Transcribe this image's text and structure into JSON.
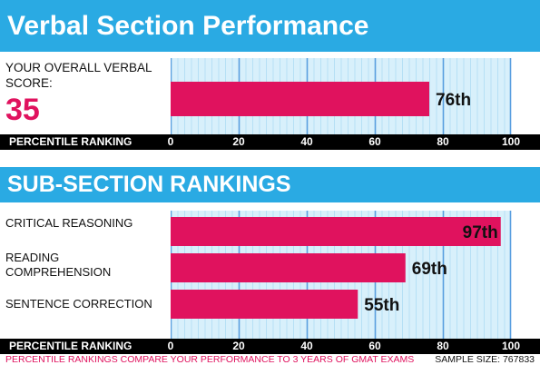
{
  "header": {
    "title": "Verbal Section Performance"
  },
  "overall": {
    "label": "YOUR OVERALL VERBAL SCORE:",
    "score": "35"
  },
  "subsection": {
    "title": "SUB-SECTION RANKINGS"
  },
  "footer": {
    "note": "PERCENTILE RANKINGS COMPARE YOUR PERFORMANCE TO 3 YEARS OF GMAT EXAMS",
    "sample": "SAMPLE SIZE: 767833"
  },
  "colors": {
    "banner": "#2aaae3",
    "bar": "#e0125e",
    "plot_bg": "#d8f0fb",
    "grid": "#5a9fe0"
  },
  "chart_data": [
    {
      "type": "bar",
      "orientation": "horizontal",
      "categories": [
        "YOUR OVERALL VERBAL SCORE"
      ],
      "values": [
        76
      ],
      "data_labels": [
        "76th"
      ],
      "xlabel": "PERCENTILE RANKING",
      "xlim": [
        0,
        100
      ],
      "xticks": [
        0,
        20,
        40,
        60,
        80,
        100
      ],
      "grid": true
    },
    {
      "type": "bar",
      "orientation": "horizontal",
      "categories": [
        "CRITICAL REASONING",
        "READING COMPREHENSION",
        "SENTENCE CORRECTION"
      ],
      "values": [
        97,
        69,
        55
      ],
      "data_labels": [
        "97th",
        "69th",
        "55th"
      ],
      "xlabel": "PERCENTILE RANKING",
      "xlim": [
        0,
        100
      ],
      "xticks": [
        0,
        20,
        40,
        60,
        80,
        100
      ],
      "grid": true
    }
  ]
}
